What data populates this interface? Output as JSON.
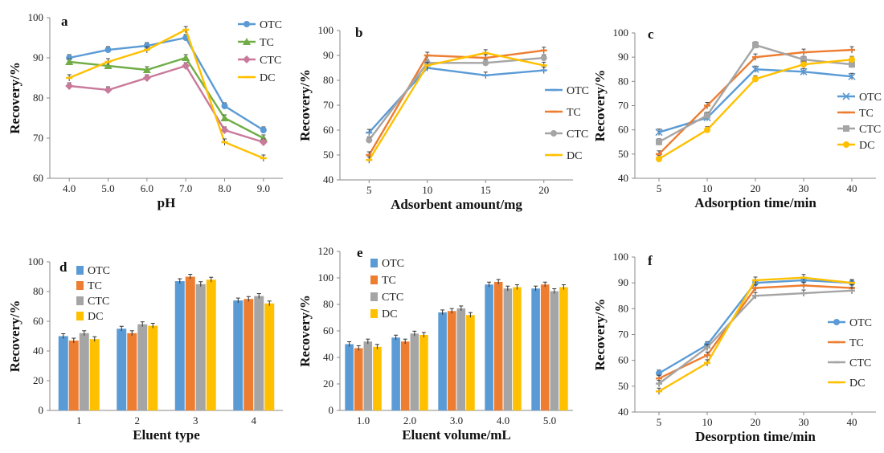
{
  "colors": {
    "OTC": "#5B9BD5",
    "TC": "#ED7D31",
    "CTC": "#A5A5A5",
    "DC": "#FFC000",
    "TC_a": "#70AD47",
    "CTC_a": "#C9799A"
  },
  "chart_data": [
    {
      "id": "a",
      "panel_label": "a",
      "type": "line",
      "xlabel": "pH",
      "ylabel": "Recovery/%",
      "ylim": [
        60,
        100
      ],
      "yticks": [
        60,
        70,
        80,
        90,
        100
      ],
      "categories": [
        "4.0",
        "5.0",
        "6.0",
        "7.0",
        "8.0",
        "9.0"
      ],
      "legend_position": "top-right",
      "series": [
        {
          "name": "OTC",
          "color": "#5B9BD5",
          "marker": "circle",
          "values": [
            90,
            92,
            93,
            95,
            78,
            72
          ]
        },
        {
          "name": "TC",
          "color": "#70AD47",
          "marker": "triangle",
          "values": [
            89,
            88,
            87,
            90,
            75,
            70
          ]
        },
        {
          "name": "CTC",
          "color": "#C9799A",
          "marker": "diamond",
          "values": [
            83,
            82,
            85,
            88,
            72,
            69
          ]
        },
        {
          "name": "DC",
          "color": "#FFC000",
          "marker": "line",
          "values": [
            85,
            89,
            92,
            97,
            69,
            65
          ]
        }
      ]
    },
    {
      "id": "b",
      "panel_label": "b",
      "type": "line",
      "xlabel": "Adsorbent amount/mg",
      "ylabel": "Recovery/%",
      "ylim": [
        40,
        100
      ],
      "yticks": [
        40,
        50,
        60,
        70,
        80,
        90,
        100
      ],
      "categories": [
        "5",
        "10",
        "15",
        "20"
      ],
      "legend_position": "right",
      "series": [
        {
          "name": "OTC",
          "color": "#5B9BD5",
          "marker": "line",
          "values": [
            59,
            85,
            82,
            84
          ]
        },
        {
          "name": "TC",
          "color": "#ED7D31",
          "marker": "line",
          "values": [
            50,
            90,
            89,
            92
          ]
        },
        {
          "name": "CTC",
          "color": "#A5A5A5",
          "marker": "circle",
          "values": [
            56,
            87,
            87,
            89
          ]
        },
        {
          "name": "DC",
          "color": "#FFC000",
          "marker": "line",
          "values": [
            48,
            86,
            91,
            86
          ]
        }
      ]
    },
    {
      "id": "c",
      "panel_label": "c",
      "type": "line",
      "xlabel": "Adsorption time/min",
      "ylabel": "Recovery/%",
      "ylim": [
        40,
        100
      ],
      "yticks": [
        40,
        50,
        60,
        70,
        80,
        90,
        100
      ],
      "categories": [
        "5",
        "10",
        "20",
        "30",
        "40"
      ],
      "legend_position": "right",
      "series": [
        {
          "name": "OTC",
          "color": "#5B9BD5",
          "marker": "x",
          "values": [
            59,
            65,
            85,
            84,
            82
          ]
        },
        {
          "name": "TC",
          "color": "#ED7D31",
          "marker": "line",
          "values": [
            50,
            70,
            90,
            92,
            93
          ]
        },
        {
          "name": "CTC",
          "color": "#A5A5A5",
          "marker": "square",
          "values": [
            55,
            66,
            95,
            89,
            87
          ]
        },
        {
          "name": "DC",
          "color": "#FFC000",
          "marker": "circle",
          "values": [
            48,
            60,
            81,
            87,
            89
          ]
        }
      ]
    },
    {
      "id": "d",
      "panel_label": "d",
      "type": "bar",
      "xlabel": "Eluent type",
      "ylabel": "Recovery/%",
      "ylim": [
        0,
        100
      ],
      "yticks": [
        0,
        20,
        40,
        60,
        80,
        100
      ],
      "categories": [
        "1",
        "2",
        "3",
        "4"
      ],
      "legend_position": "top-left",
      "series": [
        {
          "name": "OTC",
          "color": "#5B9BD5",
          "values": [
            50,
            55,
            87,
            74
          ]
        },
        {
          "name": "TC",
          "color": "#ED7D31",
          "values": [
            47,
            52,
            90,
            75
          ]
        },
        {
          "name": "CTC",
          "color": "#A5A5A5",
          "values": [
            52,
            58,
            85,
            77
          ]
        },
        {
          "name": "DC",
          "color": "#FFC000",
          "values": [
            48,
            57,
            88,
            72
          ]
        }
      ]
    },
    {
      "id": "e",
      "panel_label": "e",
      "type": "bar",
      "xlabel": "Eluent volume/mL",
      "ylabel": "Recovery/%",
      "ylim": [
        0,
        120
      ],
      "yticks": [
        0,
        20,
        40,
        60,
        80,
        100,
        120
      ],
      "categories": [
        "1.0",
        "2.0",
        "3.0",
        "4.0",
        "5.0"
      ],
      "legend_position": "top-left",
      "series": [
        {
          "name": "OTC",
          "color": "#5B9BD5",
          "values": [
            50,
            55,
            74,
            95,
            92
          ]
        },
        {
          "name": "TC",
          "color": "#ED7D31",
          "values": [
            47,
            52,
            75,
            97,
            95
          ]
        },
        {
          "name": "CTC",
          "color": "#A5A5A5",
          "values": [
            52,
            58,
            77,
            92,
            90
          ]
        },
        {
          "name": "DC",
          "color": "#FFC000",
          "values": [
            48,
            57,
            72,
            93,
            93
          ]
        }
      ]
    },
    {
      "id": "f",
      "panel_label": "f",
      "type": "line",
      "xlabel": "Desorption time/min",
      "ylabel": "Recovery/%",
      "ylim": [
        40,
        100
      ],
      "yticks": [
        40,
        50,
        60,
        70,
        80,
        90,
        100
      ],
      "categories": [
        "5",
        "10",
        "20",
        "30",
        "40"
      ],
      "legend_position": "right",
      "series": [
        {
          "name": "OTC",
          "color": "#5B9BD5",
          "marker": "circle",
          "values": [
            55,
            66,
            90,
            91,
            90
          ]
        },
        {
          "name": "TC",
          "color": "#ED7D31",
          "marker": "line",
          "values": [
            53,
            62,
            88,
            89,
            88
          ]
        },
        {
          "name": "CTC",
          "color": "#A5A5A5",
          "marker": "line",
          "values": [
            51,
            65,
            85,
            86,
            87
          ]
        },
        {
          "name": "DC",
          "color": "#FFC000",
          "marker": "line",
          "values": [
            48,
            59,
            91,
            92,
            90
          ]
        }
      ]
    }
  ]
}
